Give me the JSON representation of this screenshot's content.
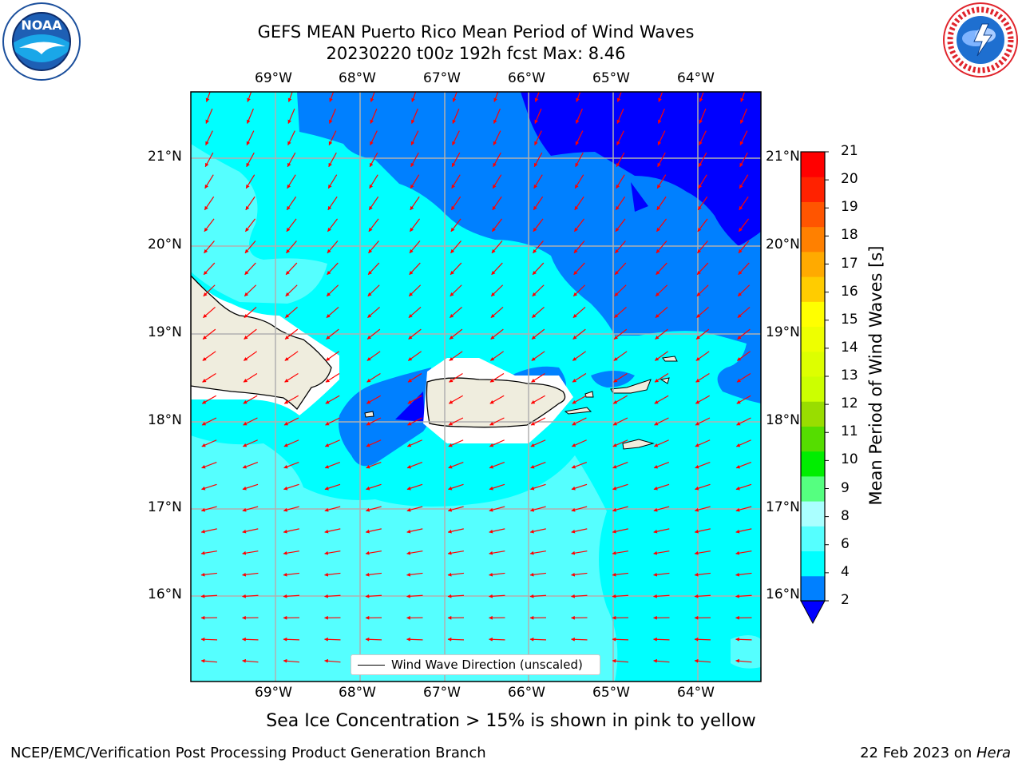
{
  "title": {
    "line1": "GEFS MEAN Puerto Rico Mean Period of Wind Waves",
    "line2": "20230220 t00z 192h fcst   Max: 8.46"
  },
  "logos": {
    "left": {
      "icon": "noaa-logo",
      "text": "NOAA",
      "ring_text": "NATIONAL OCEANIC AND ATMOSPHERIC ADMINISTRATION · U.S. DEPARTMENT OF COMMERCE"
    },
    "right": {
      "icon": "nws-logo",
      "ring_text": "NATIONAL WEATHER SERVICE"
    }
  },
  "map": {
    "lon_labels": [
      "69°W",
      "68°W",
      "67°W",
      "66°W",
      "65°W",
      "64°W"
    ],
    "lat_labels": [
      "21°N",
      "20°N",
      "19°N",
      "18°N",
      "17°N",
      "16°N"
    ],
    "legend": "Wind Wave Direction (unscaled)",
    "arrow_color": "#ff0000",
    "land_color": "#efedde",
    "ocean_colors": {
      "2-4": "#0080ff",
      "below-2": "#0000ff",
      "4-6": "#00ffff",
      "6-8": "#55ffff"
    }
  },
  "colorbar": {
    "label": "Mean Period of Wind Waves [s]",
    "ticks": [
      "21",
      "20",
      "19",
      "18",
      "17",
      "16",
      "15",
      "14",
      "13",
      "12",
      "11",
      "10",
      "9",
      "8",
      "6",
      "4",
      "2"
    ],
    "colors_bottom_to_top": [
      "#0080ff",
      "#00ffff",
      "#55ffff",
      "#aaffff",
      "#55ff80",
      "#00ee00",
      "#55dd00",
      "#99dd00",
      "#ccff00",
      "#ddff00",
      "#eeff00",
      "#ffff00",
      "#ffcc00",
      "#ffaa00",
      "#ff8000",
      "#ff5500",
      "#ff2200",
      "#ff0000"
    ],
    "extend_color": "#0000ff"
  },
  "note": "Sea Ice Concentration > 15% is shown in pink to yellow",
  "footer": {
    "left": "NCEP/EMC/Verification Post Processing Product Generation Branch",
    "right_prefix": "22 Feb 2023 on ",
    "right_machine": "Hera"
  }
}
